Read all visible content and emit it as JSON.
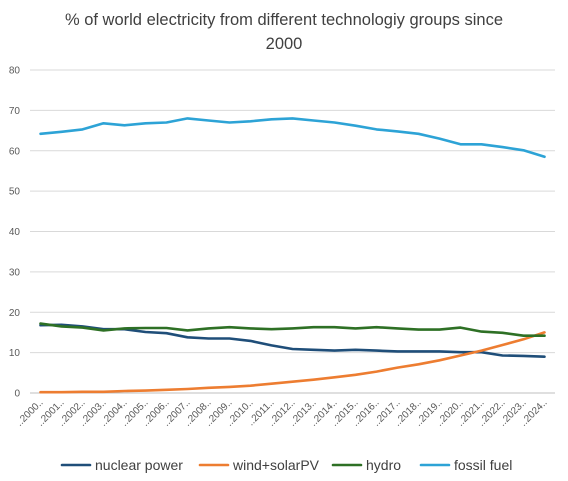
{
  "chart_data": {
    "type": "line",
    "title_lines": [
      "% of world electricity from different technologiy groups since",
      "2000"
    ],
    "xlabel": "",
    "ylabel": "",
    "categories": [
      "..2000..",
      "..2001..",
      "..2002..",
      "..2003..",
      "..2004..",
      "..2005..",
      "..2006..",
      "..2007..",
      "..2008..",
      "..2009..",
      "..2010..",
      "..2011..",
      "..2012..",
      "..2013..",
      "..2014..",
      "..2015..",
      "..2016..",
      "..2017..",
      "..2018..",
      "..2019..",
      "..2020..",
      "..2021..",
      "..2022..",
      "..2023..",
      "..2024.."
    ],
    "y_ticks": [
      0,
      10,
      20,
      30,
      40,
      50,
      60,
      70,
      80
    ],
    "ylim": [
      0,
      80
    ],
    "grid": true,
    "legend_position": "bottom",
    "series": [
      {
        "name": "nuclear power",
        "color": "#1f4e79",
        "values": [
          16.8,
          16.9,
          16.5,
          15.8,
          15.8,
          15.1,
          14.8,
          13.8,
          13.5,
          13.5,
          12.9,
          11.8,
          10.9,
          10.7,
          10.5,
          10.7,
          10.5,
          10.3,
          10.3,
          10.3,
          10.1,
          10.1,
          9.3,
          9.2,
          9.0
        ]
      },
      {
        "name": "wind+solarPV",
        "color": "#ed7d31",
        "values": [
          0.2,
          0.2,
          0.3,
          0.3,
          0.5,
          0.6,
          0.8,
          1.0,
          1.3,
          1.5,
          1.8,
          2.3,
          2.8,
          3.3,
          3.9,
          4.5,
          5.3,
          6.3,
          7.1,
          8.1,
          9.3,
          10.5,
          11.9,
          13.3,
          15.0
        ]
      },
      {
        "name": "hydro",
        "color": "#2e7025",
        "values": [
          17.2,
          16.5,
          16.2,
          15.5,
          16.0,
          16.1,
          16.1,
          15.5,
          16.0,
          16.3,
          16.0,
          15.8,
          16.0,
          16.3,
          16.3,
          16.0,
          16.3,
          16.0,
          15.7,
          15.7,
          16.2,
          15.2,
          14.9,
          14.2,
          14.2
        ]
      },
      {
        "name": "fossil fuel",
        "color": "#2da3d6",
        "values": [
          64.2,
          64.7,
          65.3,
          66.8,
          66.3,
          66.8,
          67.0,
          68.0,
          67.5,
          67.0,
          67.3,
          67.8,
          68.0,
          67.5,
          67.0,
          66.2,
          65.3,
          64.8,
          64.2,
          63.0,
          61.6,
          61.6,
          60.9,
          60.1,
          58.5
        ]
      }
    ]
  }
}
